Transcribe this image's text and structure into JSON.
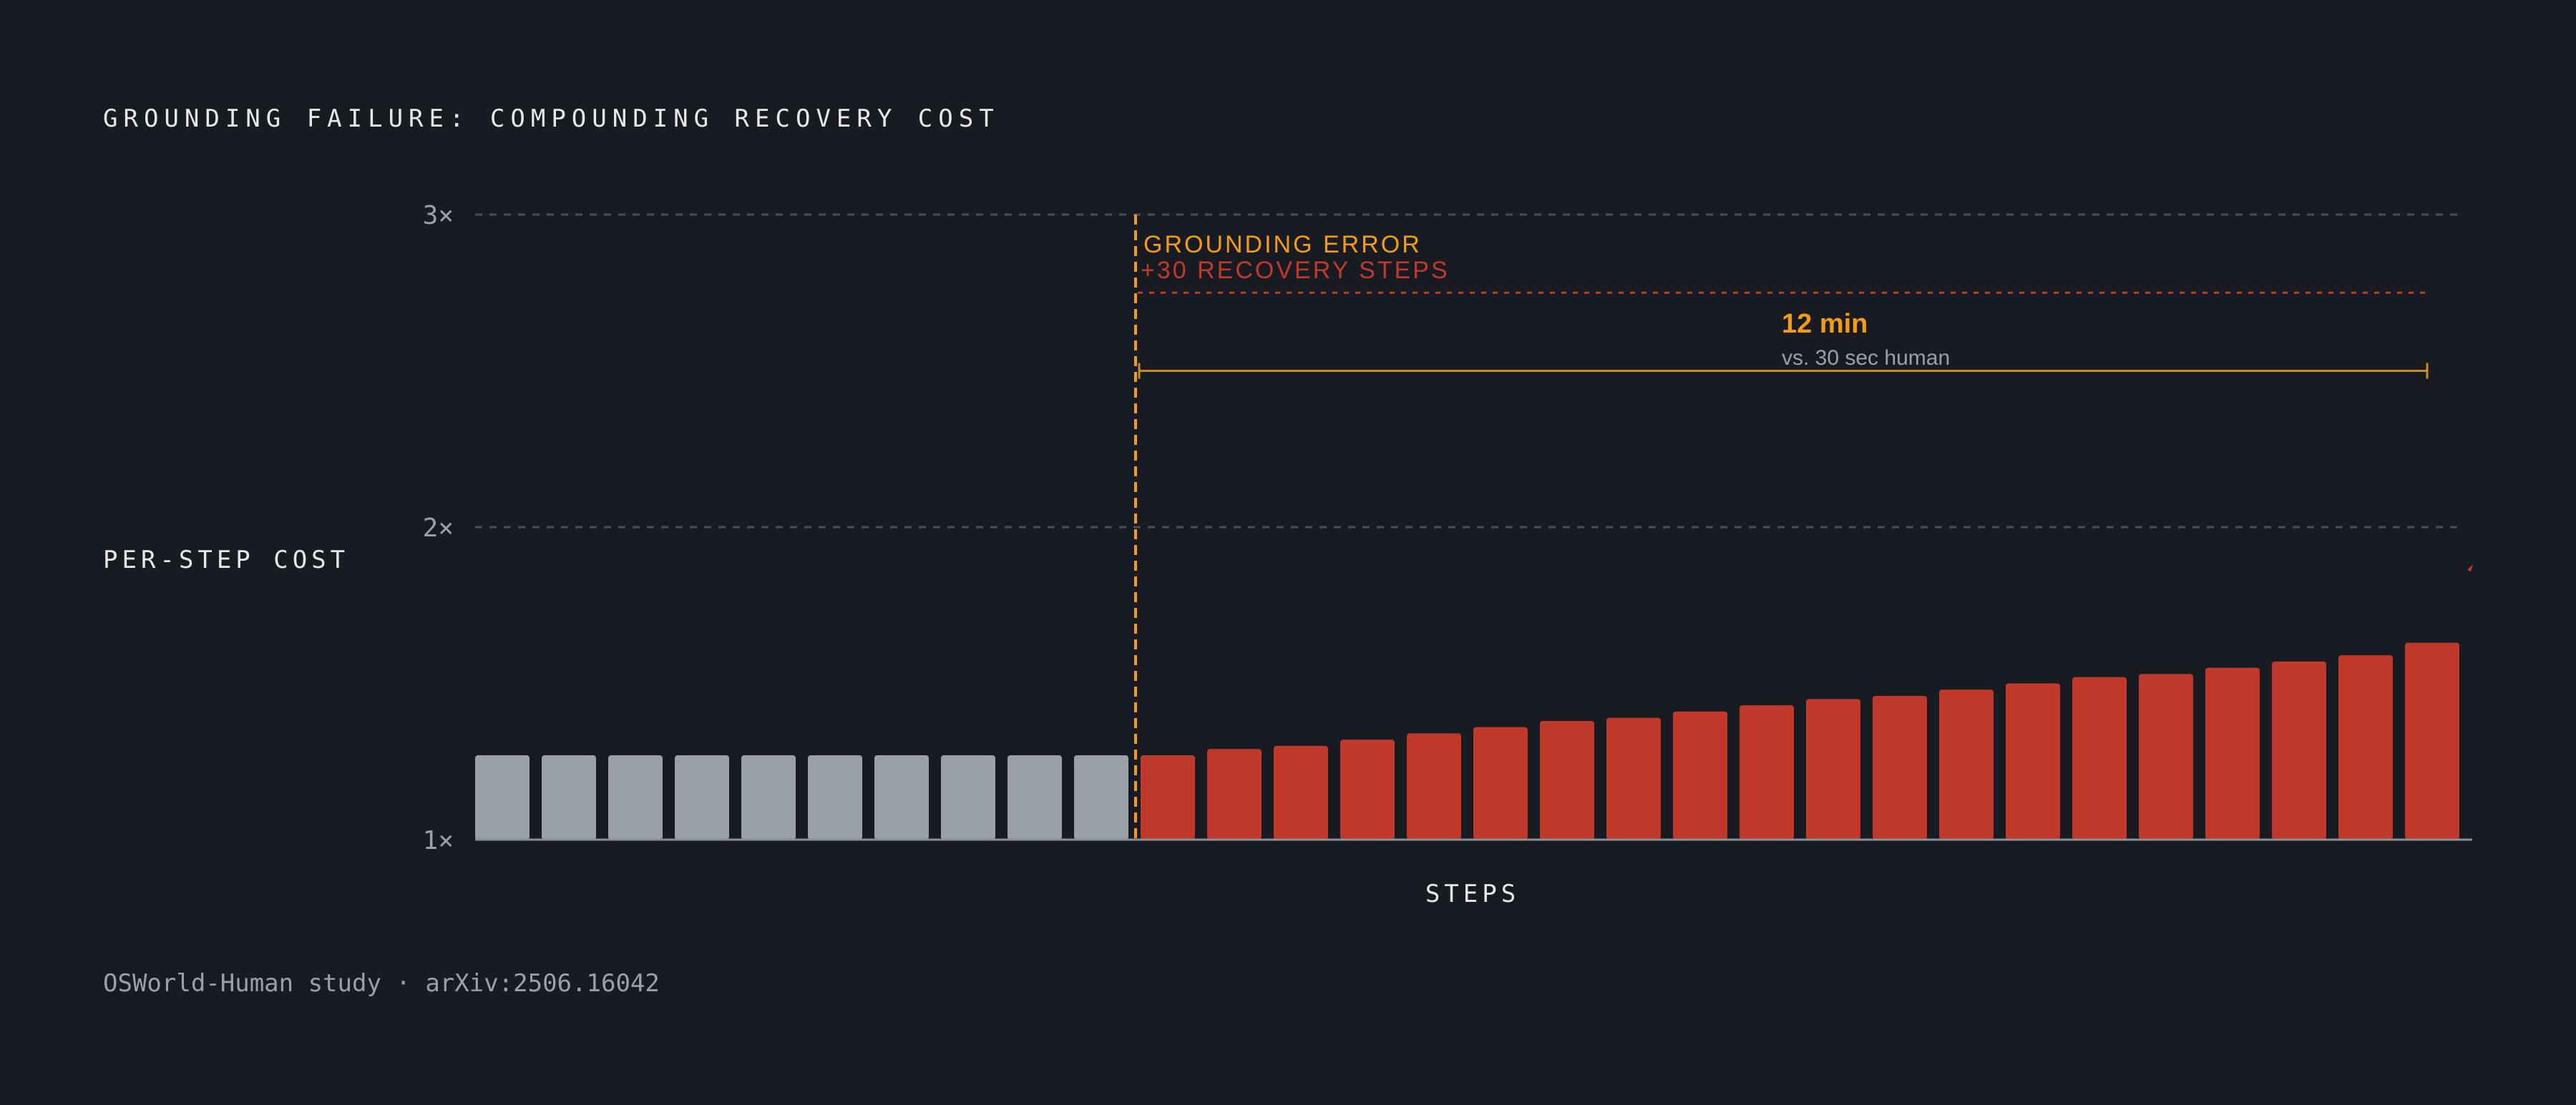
{
  "chart_data": {
    "type": "bar",
    "title": "GROUNDING FAILURE: COMPOUNDING RECOVERY COST",
    "ylabel": "PER-STEP COST",
    "xlabel": "STEPS",
    "source": "OSWorld-Human study · arXiv:2506.16042",
    "ylim": [
      1,
      3
    ],
    "y_ticks": [
      {
        "value": 3,
        "label": "3×"
      },
      {
        "value": 2,
        "label": "2×"
      },
      {
        "value": 1,
        "label": "1×"
      }
    ],
    "grid": true,
    "baseline_values": [
      1.27,
      1.27,
      1.27,
      1.27,
      1.27,
      1.27,
      1.27,
      1.27,
      1.27,
      1.27
    ],
    "recovery_values": [
      1.27,
      1.29,
      1.3,
      1.32,
      1.34,
      1.36,
      1.38,
      1.39,
      1.41,
      1.43,
      1.45,
      1.46,
      1.48,
      1.5,
      1.52,
      1.53,
      1.55,
      1.57,
      1.59,
      1.63
    ],
    "annotations": {
      "error_title": "GROUNDING ERROR",
      "error_subtitle": "+30 RECOVERY STEPS",
      "duration_value": "12 min",
      "duration_compare": "vs. 30 sec human",
      "error_line_value": 2.75,
      "duration_bracket_value": 2.5
    },
    "colors": {
      "background": "#181c22",
      "baseline_bar": "#9aa0a8",
      "recovery_bar": "#c0392b",
      "error_accent": "#f39c12",
      "recovery_text": "#c0392b",
      "grid": "#4a4f57",
      "axis": "#8a8f97",
      "title_text": "#e6e8eb",
      "muted_text": "#9aa0a8"
    }
  }
}
